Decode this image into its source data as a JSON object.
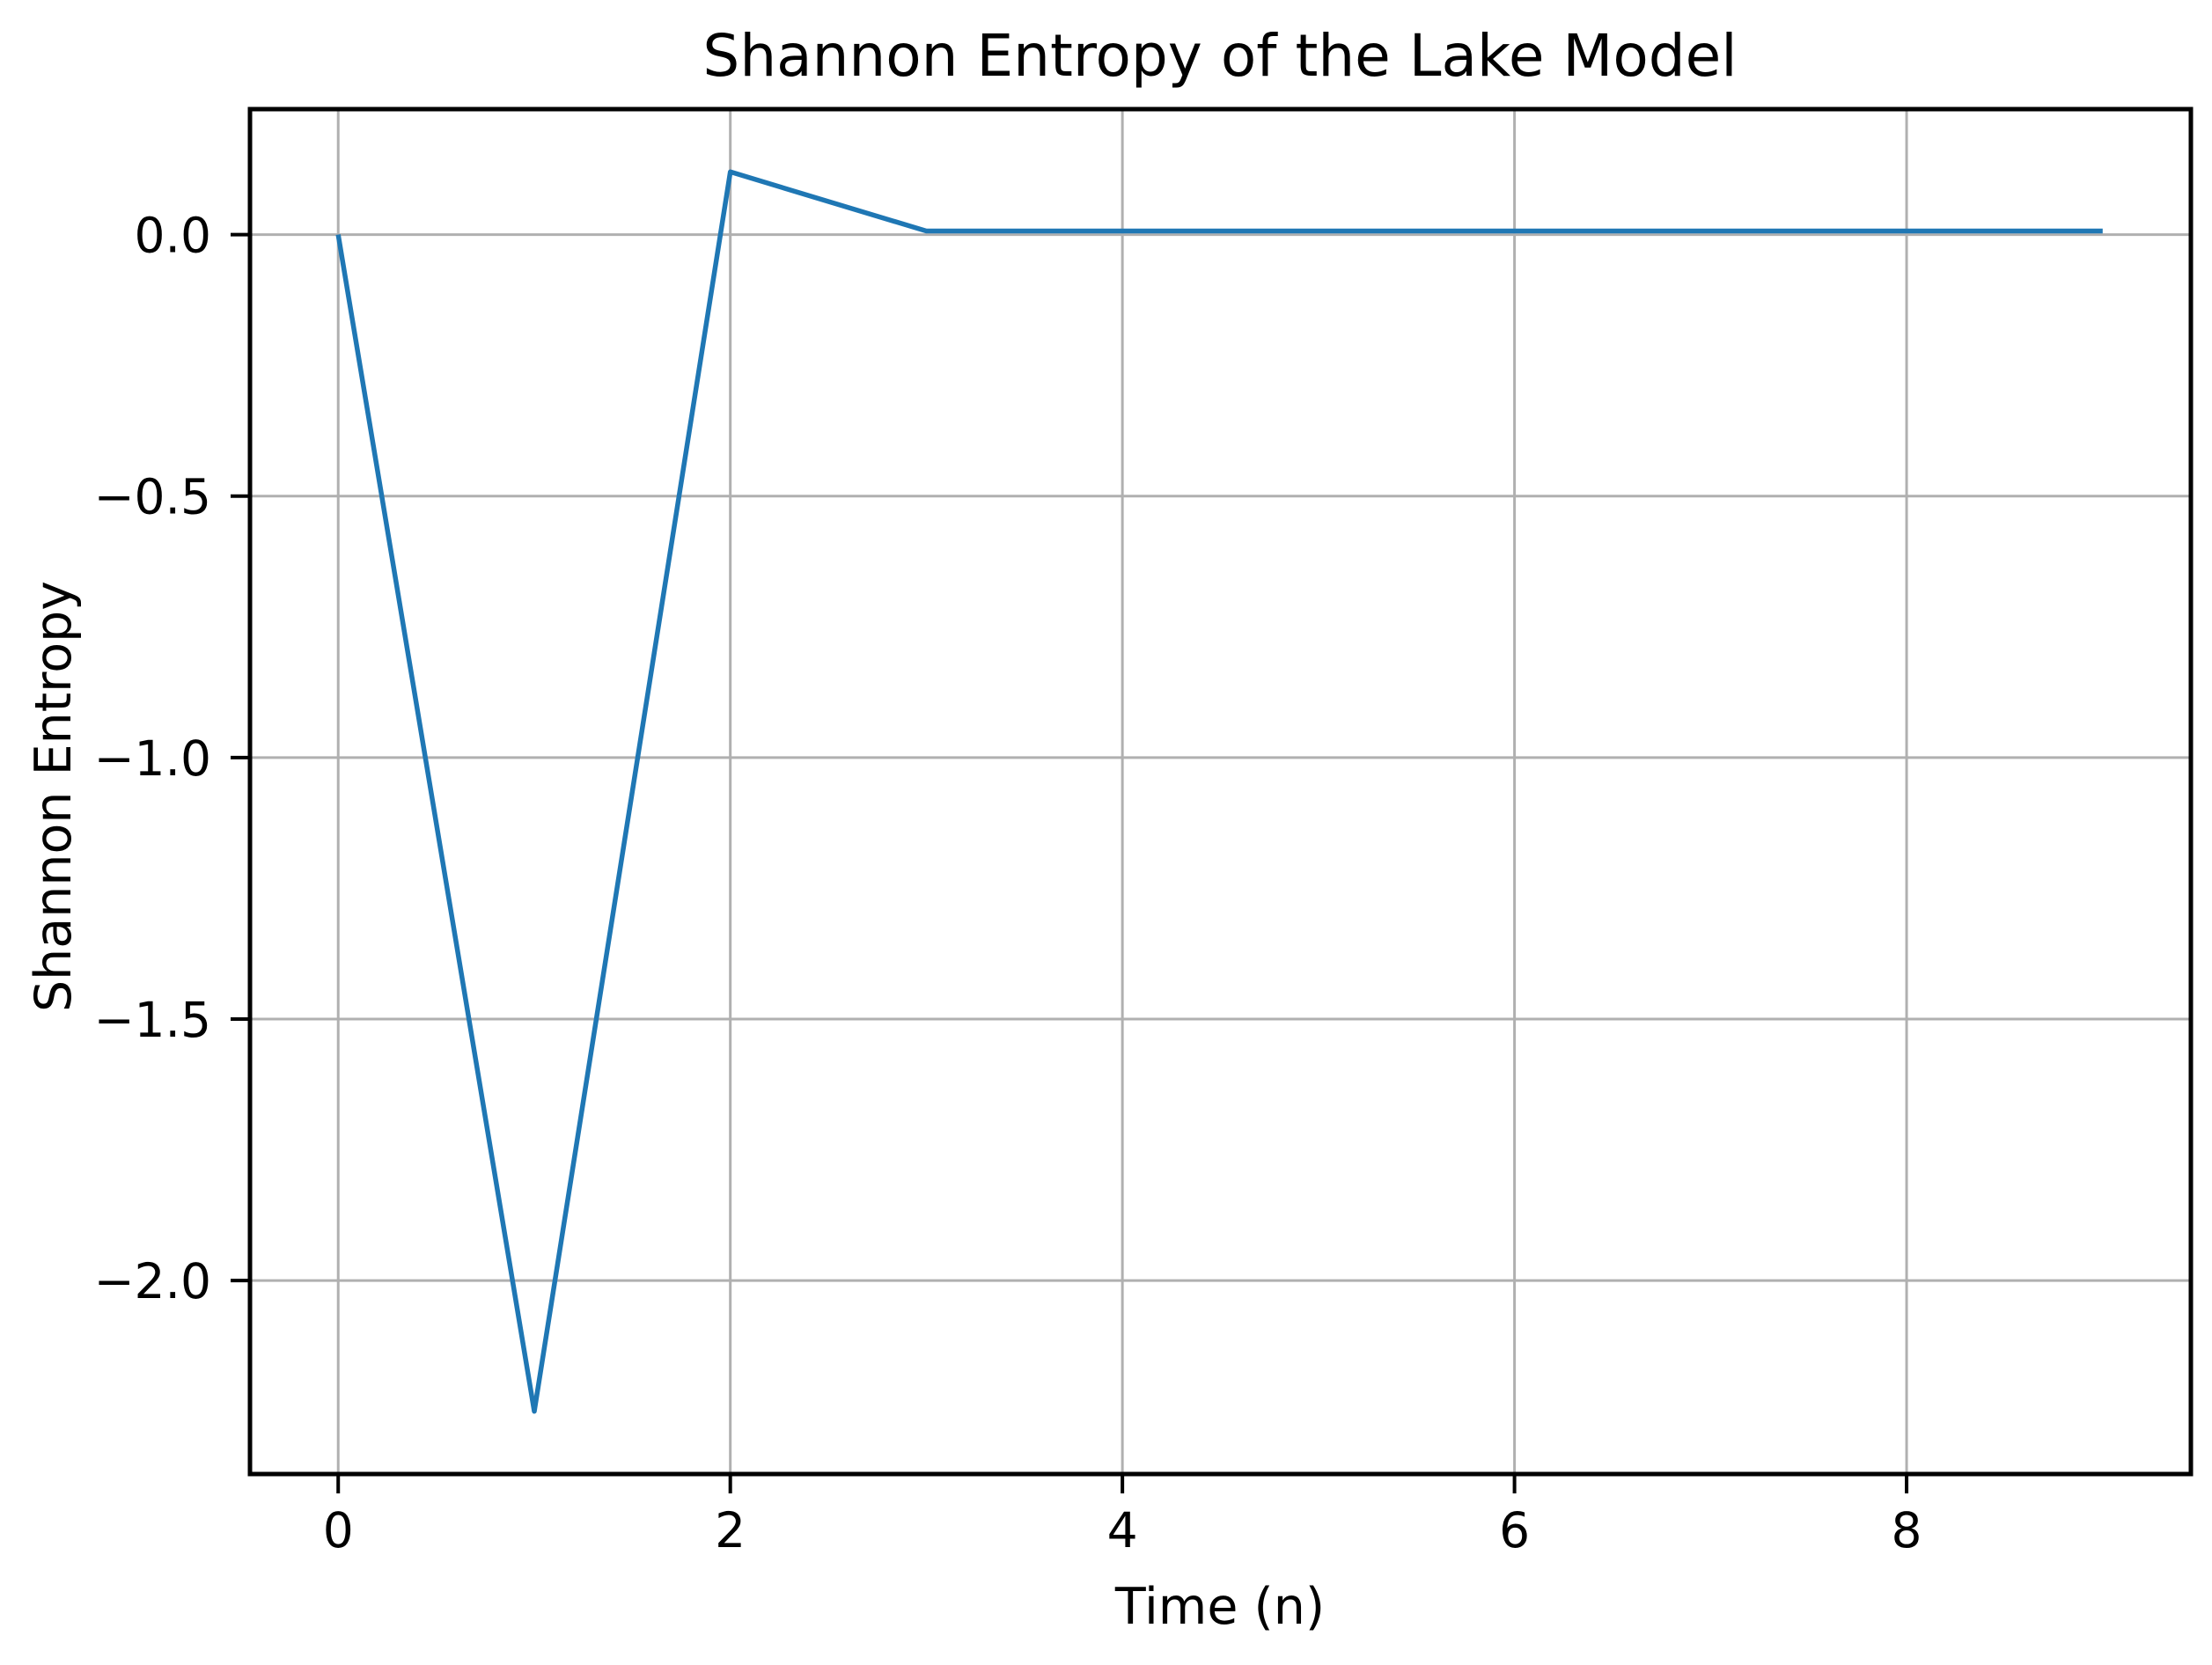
{
  "chart_data": {
    "type": "line",
    "title": "Shannon Entropy of the Lake Model",
    "xlabel": "Time (n)",
    "ylabel": "Shannon Entropy",
    "x": [
      0,
      1,
      2,
      3,
      4,
      5,
      6,
      7,
      8,
      9
    ],
    "y": [
      0.0,
      -2.25,
      0.12,
      0.007,
      0.007,
      0.007,
      0.007,
      0.007,
      0.007,
      0.007
    ],
    "xlim": [
      -0.45,
      9.45
    ],
    "ylim": [
      -2.37,
      0.24
    ],
    "x_ticks": [
      0,
      2,
      4,
      6,
      8
    ],
    "x_tick_labels": [
      "0",
      "2",
      "4",
      "6",
      "8"
    ],
    "y_ticks": [
      0.0,
      -0.5,
      -1.0,
      -1.5,
      -2.0
    ],
    "y_tick_labels": [
      "0.0",
      "−0.5",
      "−1.0",
      "−1.5",
      "−2.0"
    ],
    "grid": true,
    "legend": false,
    "colors": {
      "line": "#1f77b4",
      "grid": "#b0b0b0",
      "spine": "#000000",
      "background": "#ffffff",
      "text": "#000000"
    }
  }
}
